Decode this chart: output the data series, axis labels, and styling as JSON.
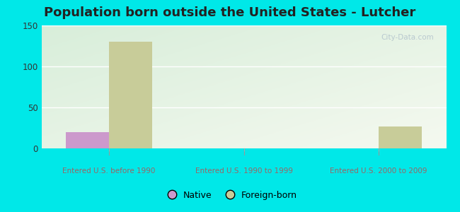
{
  "title": "Population born outside the United States - Lutcher",
  "categories": [
    "Entered U.S. before 1990",
    "Entered U.S. 1990 to 1999",
    "Entered U.S. 2000 to 2009"
  ],
  "native_values": [
    20,
    0,
    0
  ],
  "foreign_values": [
    130,
    0,
    27
  ],
  "native_color": "#cc99cc",
  "foreign_color": "#c8cc99",
  "ylim": [
    0,
    150
  ],
  "yticks": [
    0,
    50,
    100,
    150
  ],
  "background_outer": "#00e8e8",
  "title_fontsize": 13,
  "axis_label_color": "#996666",
  "bar_width": 0.32,
  "legend_native": "Native",
  "legend_foreign": "Foreign-born",
  "watermark": "City-Data.com",
  "grid_color": "#ffffff",
  "tick_label_color": "#333333"
}
